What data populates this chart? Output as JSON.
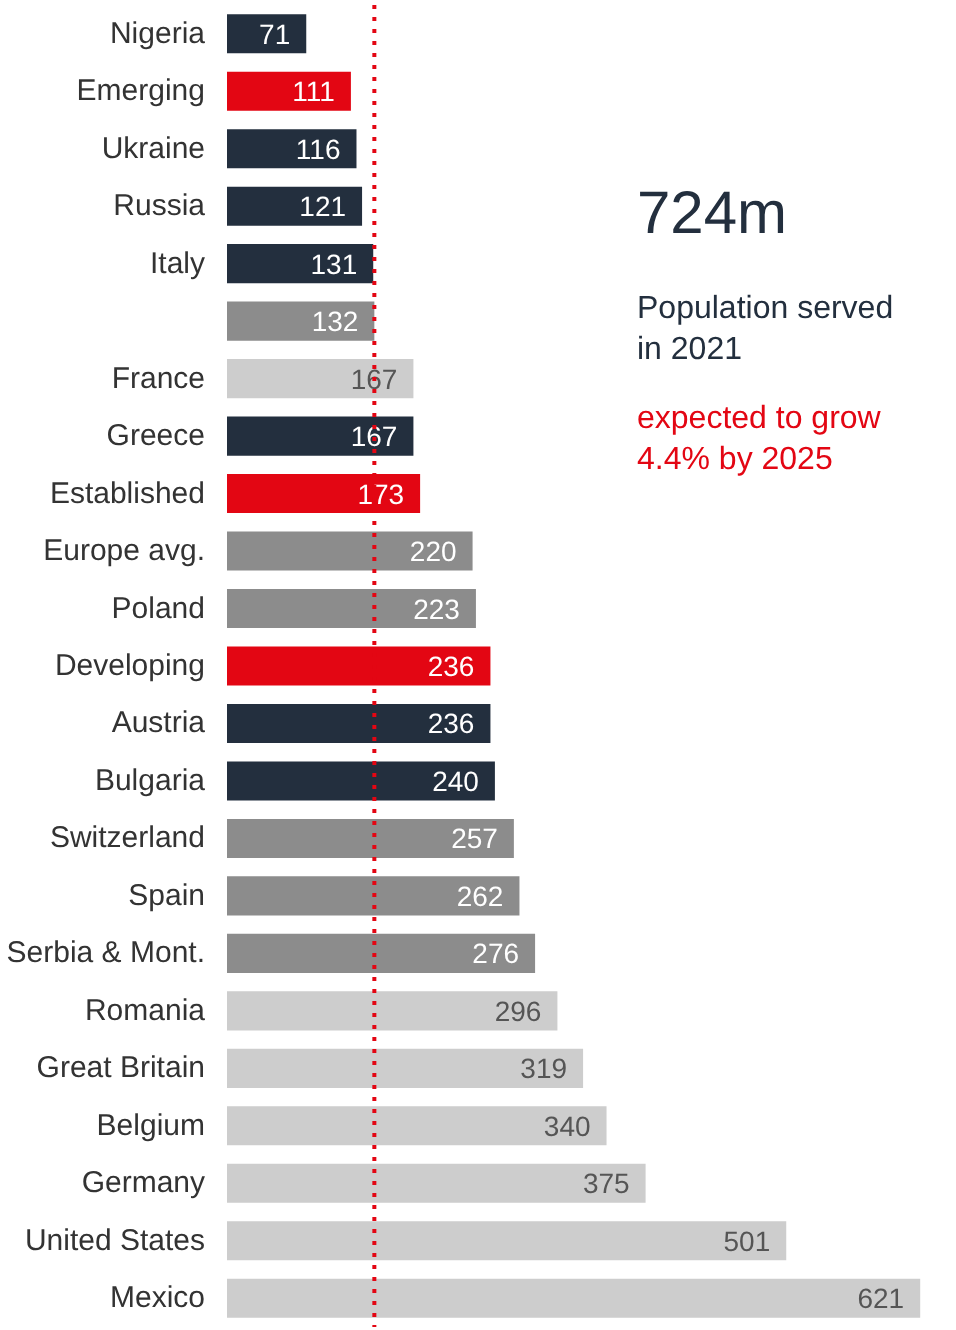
{
  "chart_data": {
    "type": "bar",
    "orientation": "horizontal",
    "data_labels": true,
    "categories": [
      "Nigeria",
      "Emerging",
      "Ukraine",
      "Russia",
      "Italy",
      null,
      "France",
      "Greece",
      "Established",
      "Europe avg.",
      "Poland",
      "Developing",
      "Austria",
      "Bulgaria",
      "Switzerland",
      "Spain",
      "Serbia & Mont.",
      "Romania",
      "Great Britain",
      "Belgium",
      "Germany",
      "United States",
      "Mexico"
    ],
    "values": [
      71,
      111,
      116,
      121,
      131,
      132,
      167,
      167,
      173,
      220,
      223,
      236,
      236,
      240,
      257,
      262,
      276,
      296,
      319,
      340,
      375,
      501,
      621
    ],
    "colors": [
      "#232f3e",
      "#e30613",
      "#232f3e",
      "#232f3e",
      "#232f3e",
      "#8c8c8c",
      "#cdcdcd",
      "#232f3e",
      "#e30613",
      "#8c8c8c",
      "#8c8c8c",
      "#e30613",
      "#232f3e",
      "#232f3e",
      "#8c8c8c",
      "#8c8c8c",
      "#8c8c8c",
      "#cdcdcd",
      "#cdcdcd",
      "#cdcdcd",
      "#cdcdcd",
      "#cdcdcd",
      "#cdcdcd"
    ],
    "ref_lines": [
      {
        "axis": "x",
        "value": 132,
        "color": "#e30613",
        "line_style": "dotted"
      }
    ],
    "annotations": [
      "724m",
      "Population served in 2021",
      "expected to grow 4.4% by 2025"
    ]
  }
}
